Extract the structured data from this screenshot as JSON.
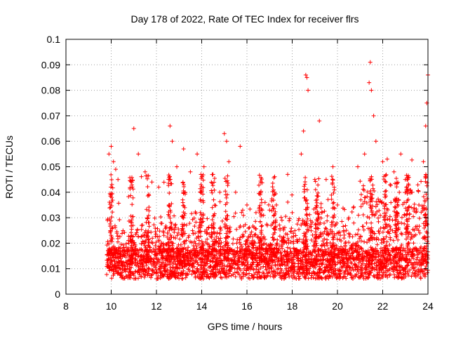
{
  "chart_data": {
    "type": "scatter",
    "title": "Day 178 of 2022, Rate Of TEC Index for receiver flrs",
    "xlabel": "GPS time / hours",
    "ylabel": "ROTI / TECUs",
    "xlim": [
      8,
      24
    ],
    "ylim": [
      0,
      0.1
    ],
    "xticks": [
      8,
      10,
      12,
      14,
      16,
      18,
      20,
      22,
      24
    ],
    "xtick_labels": [
      "8",
      "10",
      "12",
      "14",
      "16",
      "18",
      "20",
      "22",
      "24"
    ],
    "yticks": [
      0,
      0.01,
      0.02,
      0.03,
      0.04,
      0.05,
      0.06,
      0.07,
      0.08,
      0.09,
      0.1
    ],
    "ytick_labels": [
      "0",
      "0.01",
      "0.02",
      "0.03",
      "0.04",
      "0.05",
      "0.06",
      "0.07",
      "0.08",
      "0.09",
      "0.1"
    ],
    "grid": true,
    "marker": "plus",
    "color": "#ff0000",
    "data_range_x": [
      9.8,
      24
    ],
    "series": [
      {
        "values_description": "dense cloud of ROTI points mostly between 0.005 and 0.03",
        "points": [
          [
            9.9,
            0.055
          ],
          [
            10.0,
            0.058
          ],
          [
            10.1,
            0.052
          ],
          [
            10.2,
            0.049
          ],
          [
            10.3,
            0.045
          ],
          [
            11.0,
            0.065
          ],
          [
            11.2,
            0.055
          ],
          [
            11.5,
            0.048
          ],
          [
            11.8,
            0.044
          ],
          [
            12.1,
            0.042
          ],
          [
            12.6,
            0.066
          ],
          [
            12.7,
            0.06
          ],
          [
            12.9,
            0.05
          ],
          [
            13.2,
            0.057
          ],
          [
            13.5,
            0.048
          ],
          [
            13.8,
            0.055
          ],
          [
            14.1,
            0.05
          ],
          [
            14.5,
            0.047
          ],
          [
            14.8,
            0.04
          ],
          [
            15.0,
            0.063
          ],
          [
            15.1,
            0.06
          ],
          [
            15.2,
            0.052
          ],
          [
            15.5,
            0.04
          ],
          [
            15.7,
            0.058
          ],
          [
            16.0,
            0.035
          ],
          [
            16.4,
            0.032
          ],
          [
            16.8,
            0.036
          ],
          [
            17.0,
            0.033
          ],
          [
            17.3,
            0.035
          ],
          [
            17.8,
            0.047
          ],
          [
            18.0,
            0.032
          ],
          [
            18.4,
            0.055
          ],
          [
            18.5,
            0.064
          ],
          [
            18.6,
            0.086
          ],
          [
            18.65,
            0.085
          ],
          [
            18.7,
            0.08
          ],
          [
            19.0,
            0.045
          ],
          [
            19.2,
            0.068
          ],
          [
            19.5,
            0.045
          ],
          [
            19.8,
            0.05
          ],
          [
            20.0,
            0.035
          ],
          [
            20.5,
            0.03
          ],
          [
            20.9,
            0.05
          ],
          [
            21.2,
            0.055
          ],
          [
            21.4,
            0.083
          ],
          [
            21.45,
            0.091
          ],
          [
            21.5,
            0.08
          ],
          [
            21.6,
            0.07
          ],
          [
            21.7,
            0.06
          ],
          [
            22.0,
            0.052
          ],
          [
            22.2,
            0.053
          ],
          [
            22.5,
            0.048
          ],
          [
            22.8,
            0.055
          ],
          [
            23.0,
            0.045
          ],
          [
            23.3,
            0.04
          ],
          [
            23.6,
            0.035
          ],
          [
            23.8,
            0.052
          ],
          [
            23.9,
            0.066
          ],
          [
            24.0,
            0.086
          ],
          [
            23.95,
            0.075
          ]
        ]
      }
    ]
  }
}
